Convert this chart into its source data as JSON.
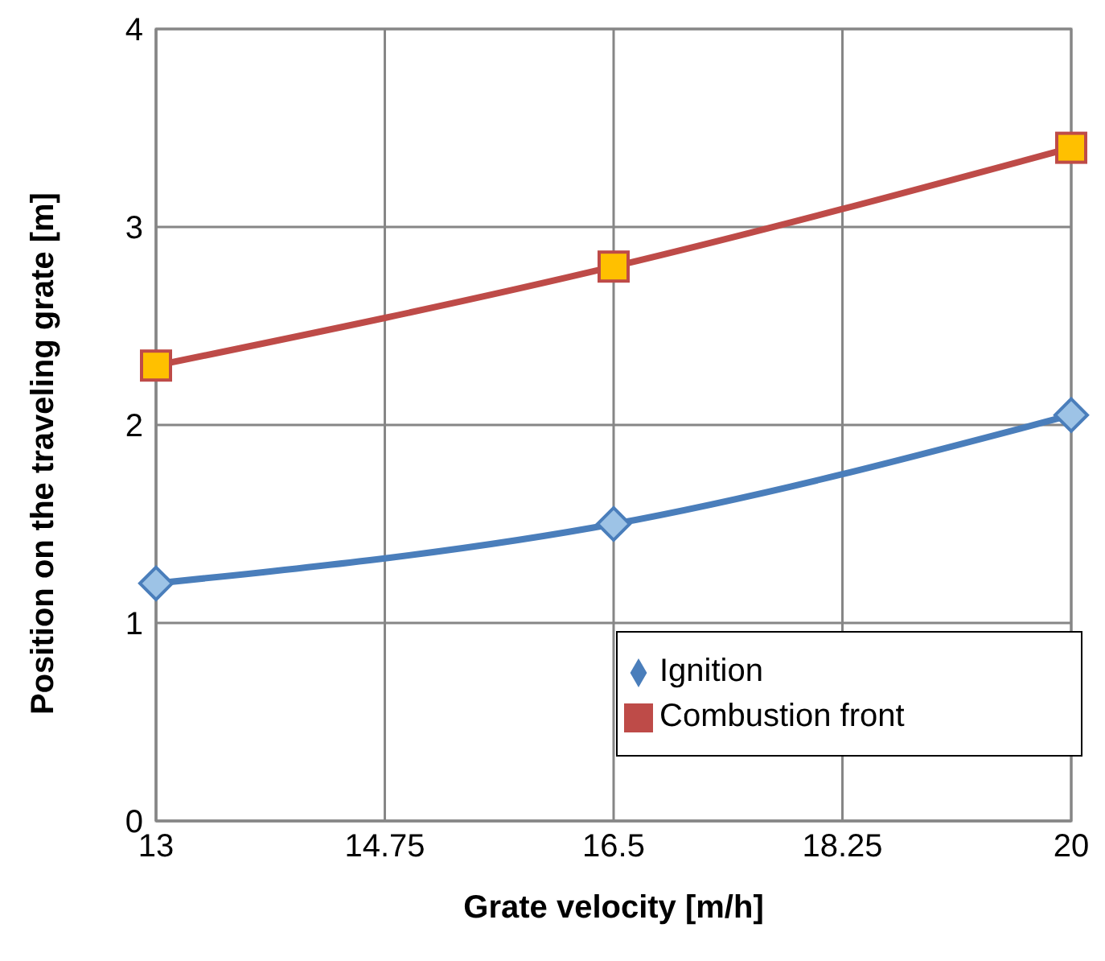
{
  "chart_data": {
    "type": "line",
    "xlabel": "Grate velocity [m/h]",
    "ylabel": "Position on the traveling grate [m]",
    "x": [
      13,
      16.5,
      20
    ],
    "series": [
      {
        "name": "Ignition",
        "color": "#4a7ebb",
        "marker": "diamond",
        "values": [
          1.2,
          1.5,
          2.05
        ]
      },
      {
        "name": "Combustion front",
        "color": "#be4b48",
        "marker": "square",
        "values": [
          2.3,
          2.8,
          3.4
        ]
      }
    ],
    "xlim": [
      13,
      20
    ],
    "xticks": [
      13,
      14.75,
      16.5,
      18.25,
      20
    ],
    "ylim": [
      0,
      4
    ],
    "yticks": [
      0,
      1,
      2,
      3,
      4
    ],
    "grid": true,
    "legend": "bottom right"
  }
}
